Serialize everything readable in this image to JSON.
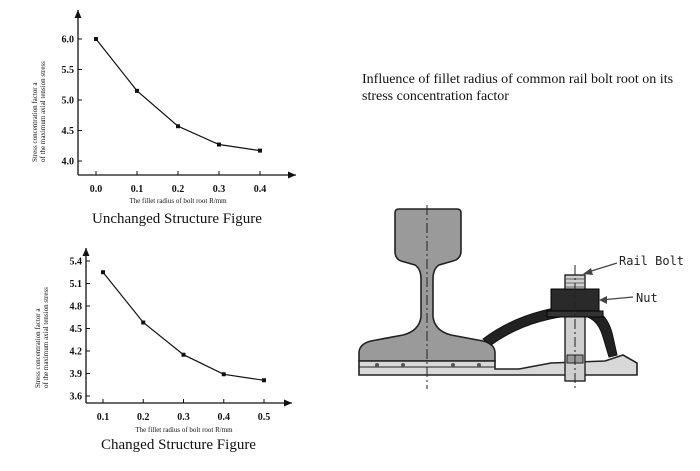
{
  "title": "Influence of fillet radius of common rail bolt root on its stress concentration factor",
  "diagram": {
    "rail_bolt_label": "Rail Bolt",
    "nut_label": "Nut"
  },
  "chart_data": [
    {
      "type": "line",
      "caption": "Unchanged Structure Figure",
      "xlabel": "The fillet radius of bolt root R/mm",
      "ylabel": [
        "Stress concentration factor a",
        "of the maximum axial tension stress"
      ],
      "x": [
        0.0,
        0.1,
        0.2,
        0.3,
        0.4
      ],
      "x_ticks": [
        "0.0",
        "0.1",
        "0.2",
        "0.3",
        "0.4"
      ],
      "y": [
        6.0,
        5.15,
        4.57,
        4.27,
        4.17
      ],
      "y_ticks": [
        "4.0",
        "4.5",
        "5.0",
        "5.5",
        "6.0"
      ],
      "xlim": [
        0.0,
        0.4
      ],
      "ylim": [
        4.0,
        6.0
      ],
      "grid": false
    },
    {
      "type": "line",
      "caption": "Changed Structure Figure",
      "xlabel": "The fillet radius of bolt root R/mm",
      "ylabel": [
        "Stress concentration factor a",
        "of the maximum axial tension stress"
      ],
      "x": [
        0.1,
        0.2,
        0.3,
        0.4,
        0.5
      ],
      "x_ticks": [
        "0.1",
        "0.2",
        "0.3",
        "0.4",
        "0.5"
      ],
      "y": [
        5.25,
        4.58,
        4.15,
        3.89,
        3.81
      ],
      "y_ticks": [
        "3.6",
        "3.9",
        "4.2",
        "4.5",
        "4.8",
        "5.1",
        "5.4"
      ],
      "xlim": [
        0.1,
        0.5
      ],
      "ylim": [
        3.6,
        5.4
      ],
      "grid": false
    }
  ]
}
